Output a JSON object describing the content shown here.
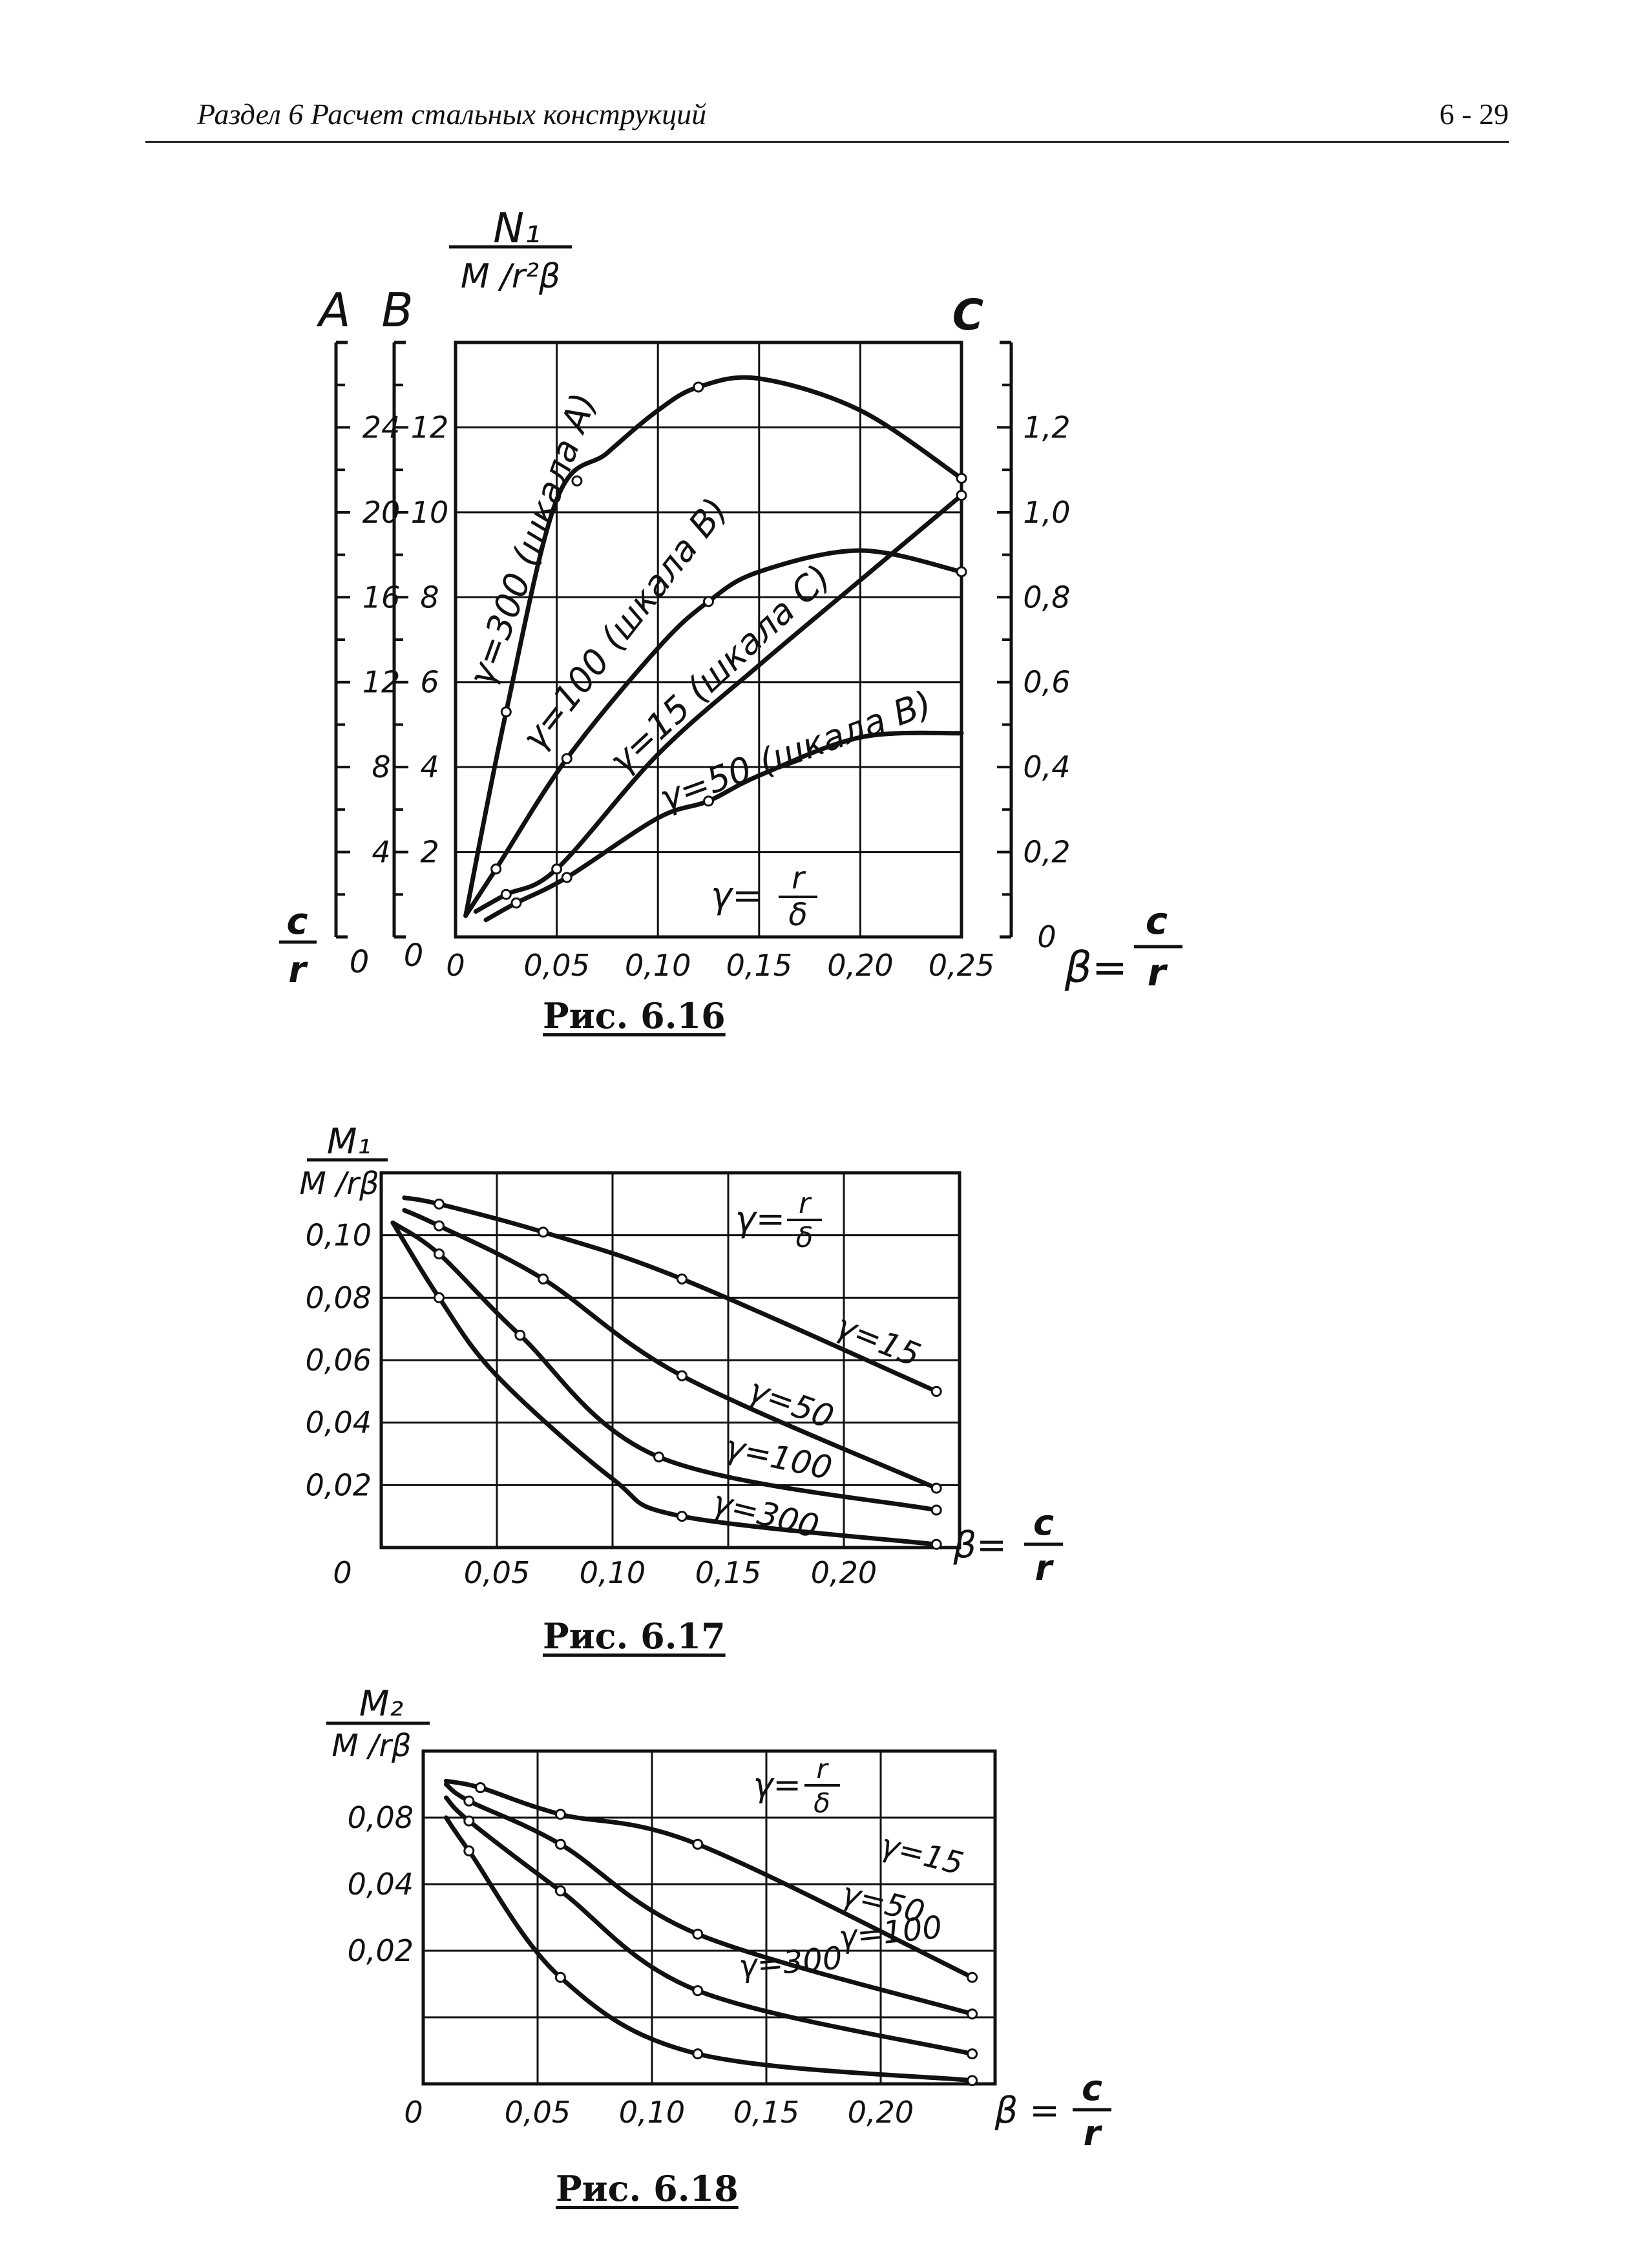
{
  "header": {
    "section": "Раздел 6  Расчет  стальных конструкций",
    "page": "6 -  29"
  },
  "figures": [
    {
      "caption": "Рис. 6.16",
      "ylabel_num": "N₁",
      "ylabel_den": "M /r²β",
      "scale_a_label": "A",
      "scale_b_label": "B",
      "scale_c_label": "C",
      "scale_a_ticks": [
        "24",
        "20",
        "16",
        "12",
        "8",
        "4"
      ],
      "scale_b_ticks": [
        "12",
        "10",
        "8",
        "6",
        "4",
        "2"
      ],
      "scale_c_ticks": [
        "1,2",
        "1,0",
        "0,8",
        "0,6",
        "0,4",
        "0,2",
        "0"
      ],
      "zero_a": "0",
      "zero_b": "0",
      "left_frac_num": "c",
      "left_frac_den": "r",
      "x_ticks": [
        "0",
        "0,05",
        "0,10",
        "0,15",
        "0,20",
        "0,25"
      ],
      "xlabel_lhs": "β=",
      "xlabel_num": "c",
      "xlabel_den": "r",
      "gamma_lhs": "γ=",
      "gamma_num": "r",
      "gamma_den": "δ",
      "curve_labels": [
        "γ=300 (шкала A)",
        "γ=100 (шкала B)",
        "γ=15 (шкала C)",
        "γ=50 (шкала B)"
      ]
    },
    {
      "caption": "Рис. 6.17",
      "ylabel_num": "M₁",
      "ylabel_den": "M /rβ",
      "y_ticks": [
        "0,10",
        "0,08",
        "0,06",
        "0,04",
        "0,02"
      ],
      "x_ticks": [
        "0",
        "0,05",
        "0,10",
        "0,15",
        "0,20"
      ],
      "xlabel_lhs": "β=",
      "xlabel_num": "c",
      "xlabel_den": "r",
      "gamma_lhs": "γ=",
      "gamma_num": "r",
      "gamma_den": "δ",
      "curve_labels": [
        "γ=15",
        "γ=50",
        "γ=100",
        "γ=300"
      ]
    },
    {
      "caption": "Рис. 6.18",
      "ylabel_num": "M₂",
      "ylabel_den": "M /rβ",
      "y_ticks": [
        "0,08",
        "0,04",
        "0,02"
      ],
      "x_ticks": [
        "0",
        "0,05",
        "0,10",
        "0,15",
        "0,20"
      ],
      "xlabel_lhs": "β =",
      "xlabel_num": "c",
      "xlabel_den": "r",
      "gamma_lhs": "γ=",
      "gamma_num": "r",
      "gamma_den": "δ",
      "curve_labels": [
        "γ=15",
        "γ=50",
        "γ=100",
        "γ=300"
      ]
    }
  ],
  "chart_data": [
    {
      "type": "line",
      "x_label": "β = c/r",
      "xlim": [
        0,
        0.25
      ],
      "ylim_scale_b": [
        0,
        14
      ],
      "ylim_scale_a": [
        0,
        28
      ],
      "ylim_scale_c": [
        0,
        1.4
      ],
      "grid": true,
      "series": [
        {
          "name": "γ=300 (шкала A)",
          "scale": "A",
          "x": [
            0.005,
            0.025,
            0.05,
            0.075,
            0.1,
            0.12,
            0.15,
            0.2,
            0.25
          ],
          "y": [
            1,
            10.6,
            20.6,
            22.8,
            24.8,
            25.9,
            26.3,
            24.8,
            21.6
          ],
          "markers_x": [
            0.025,
            0.06,
            0.12,
            0.25
          ]
        },
        {
          "name": "γ=100 (шкала B)",
          "scale": "B",
          "x": [
            0.005,
            0.02,
            0.055,
            0.1,
            0.125,
            0.15,
            0.2,
            0.25
          ],
          "y": [
            0.5,
            1.6,
            4.2,
            6.8,
            7.9,
            8.6,
            9.1,
            8.6
          ],
          "markers_x": [
            0.02,
            0.055,
            0.125,
            0.25
          ]
        },
        {
          "name": "γ=15 (шкала C)",
          "scale": "C",
          "x": [
            0.01,
            0.025,
            0.05,
            0.1,
            0.15,
            0.2,
            0.25
          ],
          "y": [
            0.06,
            0.1,
            0.16,
            0.43,
            0.64,
            0.84,
            1.04
          ],
          "markers_x": [
            0.025,
            0.05,
            0.25
          ]
        },
        {
          "name": "γ=50 (шкала B)",
          "scale": "B",
          "x": [
            0.015,
            0.03,
            0.055,
            0.1,
            0.125,
            0.15,
            0.2,
            0.25
          ],
          "y": [
            0.4,
            0.8,
            1.4,
            2.8,
            3.2,
            3.8,
            4.7,
            4.8
          ],
          "markers_x": [
            0.03,
            0.055,
            0.125
          ]
        }
      ]
    },
    {
      "type": "line",
      "x_label": "β = c/r",
      "xlim": [
        0,
        0.25
      ],
      "ylim": [
        0,
        0.12
      ],
      "grid": true,
      "series": [
        {
          "name": "γ=15",
          "x": [
            0.01,
            0.025,
            0.07,
            0.13,
            0.24
          ],
          "y": [
            0.112,
            0.11,
            0.101,
            0.086,
            0.05
          ],
          "markers_x": [
            0.025,
            0.07,
            0.13,
            0.24
          ]
        },
        {
          "name": "γ=50",
          "x": [
            0.01,
            0.025,
            0.07,
            0.13,
            0.24
          ],
          "y": [
            0.108,
            0.103,
            0.086,
            0.055,
            0.019
          ],
          "markers_x": [
            0.025,
            0.07,
            0.13,
            0.24
          ]
        },
        {
          "name": "γ=100",
          "x": [
            0.005,
            0.025,
            0.06,
            0.12,
            0.24
          ],
          "y": [
            0.104,
            0.094,
            0.068,
            0.029,
            0.012
          ],
          "markers_x": [
            0.025,
            0.06,
            0.12,
            0.24
          ]
        },
        {
          "name": "γ=300",
          "x": [
            0.005,
            0.025,
            0.05,
            0.1,
            0.13,
            0.24
          ],
          "y": [
            0.104,
            0.08,
            0.055,
            0.022,
            0.01,
            0.001
          ],
          "markers_x": [
            0.025,
            0.13,
            0.24
          ]
        }
      ]
    },
    {
      "type": "line",
      "x_label": "β = c/r",
      "xlim": [
        0,
        0.25
      ],
      "ylim": [
        0,
        0.1
      ],
      "grid": true,
      "series": [
        {
          "name": "γ=15",
          "x": [
            0.01,
            0.025,
            0.06,
            0.12,
            0.24
          ],
          "y": [
            0.091,
            0.089,
            0.081,
            0.072,
            0.032
          ],
          "markers_x": [
            0.025,
            0.06,
            0.12,
            0.24
          ]
        },
        {
          "name": "γ=50",
          "x": [
            0.01,
            0.02,
            0.06,
            0.12,
            0.24
          ],
          "y": [
            0.09,
            0.085,
            0.072,
            0.045,
            0.021
          ],
          "markers_x": [
            0.02,
            0.06,
            0.12,
            0.24
          ]
        },
        {
          "name": "γ=100",
          "x": [
            0.01,
            0.02,
            0.06,
            0.12,
            0.24
          ],
          "y": [
            0.086,
            0.079,
            0.058,
            0.028,
            0.009
          ],
          "markers_x": [
            0.02,
            0.06,
            0.12,
            0.24
          ]
        },
        {
          "name": "γ=300",
          "x": [
            0.01,
            0.02,
            0.06,
            0.12,
            0.24
          ],
          "y": [
            0.08,
            0.07,
            0.032,
            0.009,
            0.001
          ],
          "markers_x": [
            0.02,
            0.06,
            0.12,
            0.24
          ]
        }
      ]
    }
  ]
}
